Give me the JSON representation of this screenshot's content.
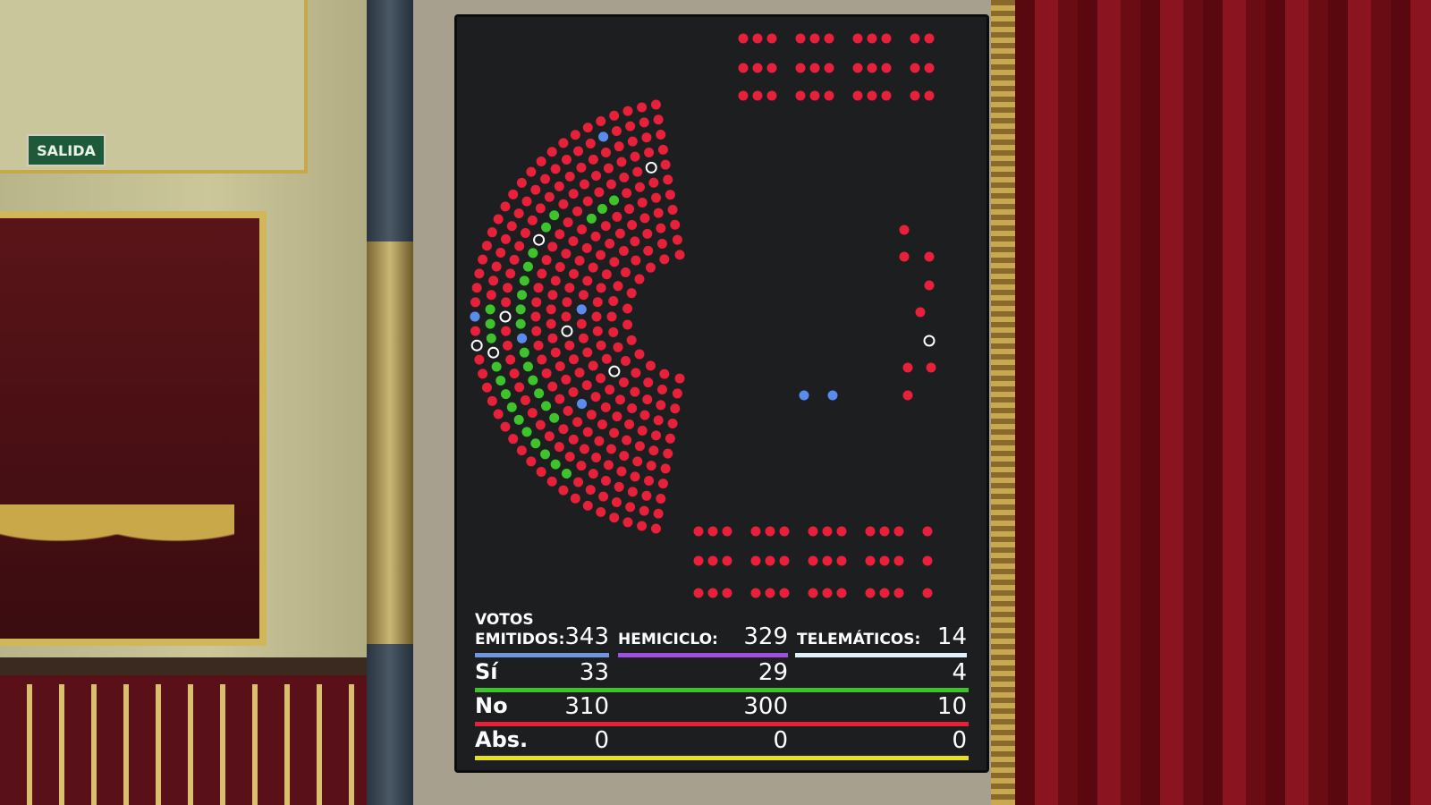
{
  "scene": {
    "exit_sign": "SALIDA"
  },
  "board": {
    "votos_label": "VOTOS",
    "emitidos_label": "EMITIDOS:",
    "emitidos": "343",
    "hemiciclo_label": "HEMICICLO:",
    "hemiciclo": "329",
    "telematicos_label": "TELEMÁTICOS:",
    "telematicos": "14",
    "rows": [
      {
        "label": "Sí",
        "total": "33",
        "hemiciclo": "29",
        "telematicos": "4",
        "color": "#3ec42a"
      },
      {
        "label": "No",
        "total": "310",
        "hemiciclo": "300",
        "telematicos": "10",
        "color": "#e8203a"
      },
      {
        "label": "Abs.",
        "total": "0",
        "hemiciclo": "0",
        "telematicos": "0",
        "color": "#e6e020"
      }
    ],
    "seat_colors": {
      "yes": "#3ec42a",
      "no": "#e8203a",
      "blue": "#5a8cf0",
      "absent": "#ffffff"
    },
    "header_line_colors": [
      "#6e96e0",
      "#a050e0",
      "#e0f0ff"
    ]
  }
}
